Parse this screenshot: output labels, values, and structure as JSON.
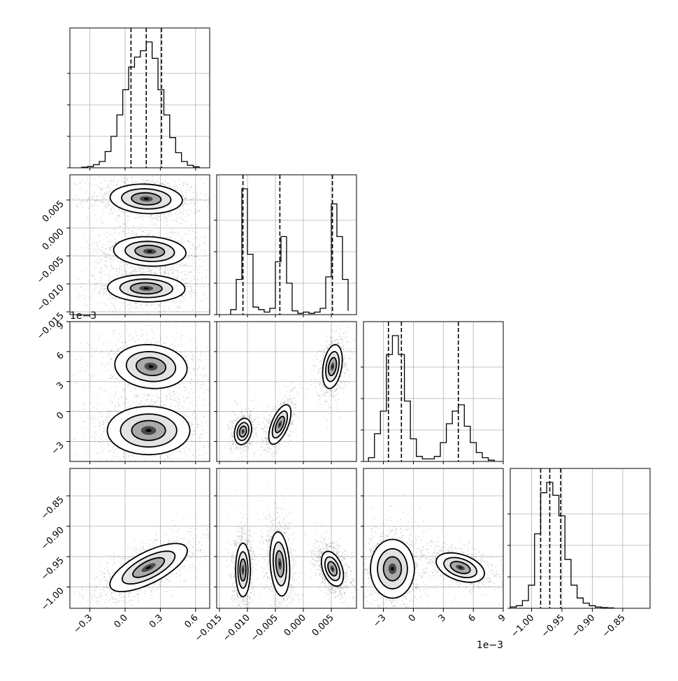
{
  "chart_data": {
    "type": "corner",
    "grid": true,
    "axis_ticks": [
      {
        "ticks": [
          -0.3,
          0.0,
          0.3,
          0.6
        ],
        "labels": [
          "−0.3",
          "0.0",
          "0.3",
          "0.6"
        ],
        "range": [
          -0.47,
          0.72
        ],
        "offset_label": ""
      },
      {
        "ticks": [
          -0.015,
          -0.01,
          -0.005,
          0.0,
          0.005
        ],
        "labels": [
          "−0.015",
          "−0.010",
          "−0.005",
          "0.000",
          "0.005"
        ],
        "range": [
          -0.0155,
          0.0095
        ],
        "offset_label": ""
      },
      {
        "ticks": [
          -3,
          0,
          3,
          6,
          9
        ],
        "labels": [
          "−3",
          "0",
          "3",
          "6",
          "9"
        ],
        "range": [
          -5.0,
          9.0
        ],
        "offset_label": "1e−3"
      },
      {
        "ticks": [
          -1.0,
          -0.95,
          -0.9,
          -0.85
        ],
        "labels": [
          "−1.00",
          "−0.95",
          "−0.90",
          "−0.85"
        ],
        "range": [
          -1.035,
          -0.805
        ],
        "offset_label": ""
      }
    ],
    "histograms": [
      {
        "param": 0,
        "quantiles": [
          0.05,
          0.18,
          0.31
        ],
        "bin_edges": [
          -0.37,
          -0.32,
          -0.27,
          -0.22,
          -0.17,
          -0.12,
          -0.07,
          -0.02,
          0.03,
          0.08,
          0.13,
          0.18,
          0.23,
          0.28,
          0.33,
          0.38,
          0.43,
          0.48,
          0.53,
          0.58,
          0.63
        ],
        "counts": [
          0.005,
          0.01,
          0.025,
          0.05,
          0.13,
          0.25,
          0.42,
          0.62,
          0.8,
          0.88,
          0.93,
          1.0,
          0.87,
          0.62,
          0.42,
          0.24,
          0.12,
          0.05,
          0.02,
          0.008
        ]
      },
      {
        "param": 1,
        "quantiles": [
          -0.0108,
          -0.0042,
          0.0052
        ],
        "bin_edges": [
          -0.013,
          -0.012,
          -0.011,
          -0.01,
          -0.009,
          -0.008,
          -0.007,
          -0.006,
          -0.005,
          -0.004,
          -0.003,
          -0.002,
          -0.001,
          0.0,
          0.001,
          0.002,
          0.003,
          0.004,
          0.005,
          0.006,
          0.007,
          0.008
        ],
        "counts": [
          0.04,
          0.28,
          1.0,
          0.48,
          0.06,
          0.04,
          0.02,
          0.05,
          0.42,
          0.62,
          0.25,
          0.03,
          0.01,
          0.02,
          0.01,
          0.02,
          0.05,
          0.3,
          0.88,
          0.62,
          0.28,
          0.03
        ]
      },
      {
        "param": 2,
        "quantiles": [
          -2.5,
          -1.2,
          4.5
        ],
        "bin_edges": [
          -4.5,
          -3.9,
          -3.3,
          -2.7,
          -2.1,
          -1.5,
          -0.9,
          -0.3,
          0.3,
          0.9,
          1.5,
          2.1,
          2.7,
          3.3,
          3.9,
          4.5,
          5.1,
          5.7,
          6.3,
          6.9,
          7.5,
          8.1
        ],
        "counts": [
          0.03,
          0.22,
          0.4,
          0.85,
          1.0,
          0.85,
          0.48,
          0.18,
          0.04,
          0.02,
          0.02,
          0.04,
          0.15,
          0.3,
          0.4,
          0.45,
          0.28,
          0.15,
          0.07,
          0.03,
          0.01
        ]
      },
      {
        "param": 3,
        "quantiles": [
          -0.985,
          -0.97,
          -0.952
        ],
        "bin_edges": [
          -1.035,
          -1.025,
          -1.015,
          -1.005,
          -0.995,
          -0.985,
          -0.975,
          -0.965,
          -0.955,
          -0.945,
          -0.935,
          -0.925,
          -0.915,
          -0.905,
          -0.895,
          -0.885,
          -0.875,
          -0.865
        ],
        "counts": [
          0.01,
          0.02,
          0.06,
          0.18,
          0.58,
          0.9,
          0.98,
          0.88,
          0.72,
          0.38,
          0.18,
          0.08,
          0.04,
          0.02,
          0.01,
          0.005,
          0.003
        ]
      }
    ],
    "pair_clusters": [
      {
        "x": 0,
        "y": 1,
        "clusters": [
          {
            "cx": 0.18,
            "cy": 0.0052,
            "sx": 0.14,
            "sy": 0.0012,
            "rho": -0.1,
            "weight": 1.0
          },
          {
            "cx": 0.21,
            "cy": -0.0042,
            "sx": 0.14,
            "sy": 0.0012,
            "rho": -0.1,
            "weight": 0.9
          },
          {
            "cx": 0.18,
            "cy": -0.0108,
            "sx": 0.15,
            "sy": 0.0011,
            "rho": -0.05,
            "weight": 0.9
          }
        ]
      },
      {
        "x": 0,
        "y": 2,
        "clusters": [
          {
            "cx": 0.22,
            "cy": 4.5,
            "sx": 0.14,
            "sy": 1.0,
            "rho": -0.1,
            "weight": 0.7
          },
          {
            "cx": 0.2,
            "cy": -1.9,
            "sx": 0.16,
            "sy": 1.1,
            "rho": 0.0,
            "weight": 1.0
          }
        ]
      },
      {
        "x": 1,
        "y": 2,
        "clusters": [
          {
            "cx": 0.0052,
            "cy": 4.5,
            "sx": 0.0008,
            "sy": 1.0,
            "rho": 0.3,
            "weight": 0.6
          },
          {
            "cx": -0.0042,
            "cy": -1.3,
            "sx": 0.0009,
            "sy": 0.9,
            "rho": 0.6,
            "weight": 0.6
          },
          {
            "cx": -0.0108,
            "cy": -2.0,
            "sx": 0.0007,
            "sy": 0.6,
            "rho": 0.2,
            "weight": 0.5
          }
        ]
      },
      {
        "x": 0,
        "y": 3,
        "clusters": [
          {
            "cx": 0.2,
            "cy": -0.968,
            "sx": 0.15,
            "sy": 0.018,
            "rho": 0.7,
            "weight": 1.0
          }
        ]
      },
      {
        "x": 1,
        "y": 3,
        "clusters": [
          {
            "cx": -0.0108,
            "cy": -0.972,
            "sx": 0.0006,
            "sy": 0.02,
            "rho": 0.0,
            "weight": 0.8
          },
          {
            "cx": -0.0042,
            "cy": -0.962,
            "sx": 0.0008,
            "sy": 0.024,
            "rho": -0.2,
            "weight": 0.9
          },
          {
            "cx": 0.0052,
            "cy": -0.97,
            "sx": 0.0009,
            "sy": 0.013,
            "rho": -0.4,
            "weight": 1.0
          }
        ]
      },
      {
        "x": 2,
        "y": 3,
        "clusters": [
          {
            "cx": -2.1,
            "cy": -0.97,
            "sx": 1.0,
            "sy": 0.022,
            "rho": 0.0,
            "weight": 1.0
          },
          {
            "cx": 4.7,
            "cy": -0.968,
            "sx": 1.1,
            "sy": 0.011,
            "rho": -0.4,
            "weight": 0.7
          }
        ]
      }
    ]
  }
}
